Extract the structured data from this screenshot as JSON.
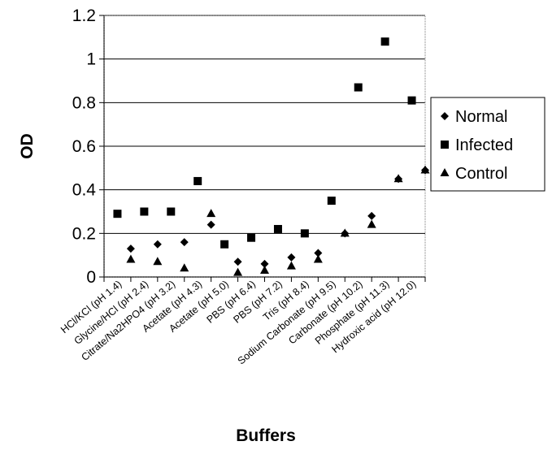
{
  "chart_data": {
    "type": "scatter",
    "title": "",
    "xlabel": "Buffers",
    "ylabel": "OD",
    "ylim": [
      0,
      1.2
    ],
    "yticks": [
      "0",
      "0.2",
      "0.4",
      "0.6",
      "0.8",
      "1",
      "1.2"
    ],
    "grid": "horizontal",
    "legend_position": "right",
    "categories": [
      "HCl/KCl (pH 1.4)",
      "Glycine/HCl (pH 2.4)",
      "Citrate/Na2HPO4 (pH 3.2)",
      "Acetate (pH 4.3)",
      "Acetate (pH 5.0)",
      "PBS (pH 6.4)",
      "PBS (pH 7.2)",
      "Tris (pH 8.4)",
      "Sodium Carbonate (pH 9.5)",
      "Carbonate (pH 10.2)",
      "Phosphate (pH 11.3)",
      "Hydroxic acid (pH 12.0)"
    ],
    "series": [
      {
        "name": "Normal",
        "marker": "diamond",
        "points": [
          {
            "x": 0.5,
            "y": 0.13
          },
          {
            "x": 1.5,
            "y": 0.15
          },
          {
            "x": 2.5,
            "y": 0.16
          },
          {
            "x": 3.5,
            "y": 0.24
          },
          {
            "x": 4.5,
            "y": 0.07
          },
          {
            "x": 5.5,
            "y": 0.06
          },
          {
            "x": 6.5,
            "y": 0.09
          },
          {
            "x": 7.5,
            "y": 0.11
          },
          {
            "x": 8.5,
            "y": 0.2
          },
          {
            "x": 9.5,
            "y": 0.28
          },
          {
            "x": 10.5,
            "y": 0.45
          },
          {
            "x": 11.5,
            "y": 0.49
          }
        ]
      },
      {
        "name": "Infected",
        "marker": "square",
        "points": [
          {
            "x": 0,
            "y": 0.29
          },
          {
            "x": 1,
            "y": 0.3
          },
          {
            "x": 2,
            "y": 0.3
          },
          {
            "x": 3,
            "y": 0.44
          },
          {
            "x": 4,
            "y": 0.15
          },
          {
            "x": 5,
            "y": 0.18
          },
          {
            "x": 6,
            "y": 0.22
          },
          {
            "x": 7,
            "y": 0.2
          },
          {
            "x": 8,
            "y": 0.35
          },
          {
            "x": 9,
            "y": 0.87
          },
          {
            "x": 10,
            "y": 1.08
          },
          {
            "x": 11,
            "y": 0.81
          }
        ]
      },
      {
        "name": "Control",
        "marker": "triangle",
        "points": [
          {
            "x": 0.5,
            "y": 0.08
          },
          {
            "x": 1.5,
            "y": 0.07
          },
          {
            "x": 2.5,
            "y": 0.04
          },
          {
            "x": 3.5,
            "y": 0.29
          },
          {
            "x": 4.5,
            "y": 0.02
          },
          {
            "x": 5.5,
            "y": 0.03
          },
          {
            "x": 6.5,
            "y": 0.05
          },
          {
            "x": 7.5,
            "y": 0.08
          },
          {
            "x": 8.5,
            "y": 0.2
          },
          {
            "x": 9.5,
            "y": 0.24
          },
          {
            "x": 10.5,
            "y": 0.45
          },
          {
            "x": 11.5,
            "y": 0.49
          }
        ]
      }
    ],
    "colors": {
      "marker": "#000000",
      "gridline": "#000000",
      "background": "#ffffff"
    }
  }
}
